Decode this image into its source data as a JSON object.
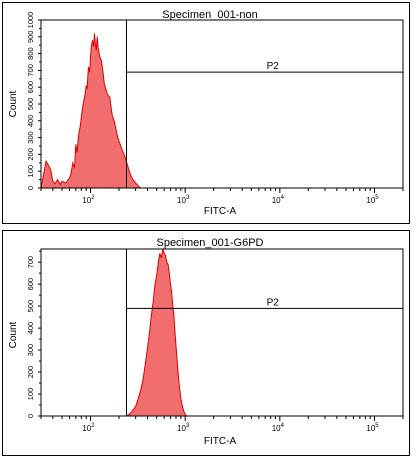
{
  "colors": {
    "fill": "#f26d6d",
    "stroke": "#dd0000",
    "axis": "#000000",
    "background": "#ffffff"
  },
  "panels": [
    {
      "title": "Specimen_001-non",
      "xlabel": "FITC-A",
      "ylabel": "Count",
      "gate_label": "P2",
      "chart_data": {
        "type": "area",
        "title": "Specimen_001-non",
        "xlabel": "FITC-A",
        "ylabel": "Count",
        "x_scale": "log",
        "xlim": [
          30,
          200000
        ],
        "ylim": [
          0,
          1000
        ],
        "x_ticks": [
          {
            "base": "10",
            "exp": "2",
            "value": 100
          },
          {
            "base": "10",
            "exp": "3",
            "value": 1000
          },
          {
            "base": "10",
            "exp": "4",
            "value": 10000
          },
          {
            "base": "10",
            "exp": "5",
            "value": 100000
          }
        ],
        "y_ticks": [
          0,
          100,
          200,
          300,
          400,
          500,
          600,
          700,
          800,
          900,
          1000
        ],
        "gate": {
          "name": "P2",
          "x_min": 240,
          "x_max": 200000,
          "level": 690
        },
        "x": [
          30,
          34,
          38,
          40,
          42,
          45,
          48,
          50,
          55,
          60,
          62,
          65,
          68,
          70,
          72,
          75,
          78,
          80,
          82,
          85,
          88,
          90,
          92,
          95,
          98,
          100,
          102,
          105,
          108,
          110,
          112,
          115,
          118,
          120,
          125,
          130,
          135,
          140,
          150,
          160,
          170,
          180,
          190,
          200,
          215,
          230,
          245,
          260,
          280,
          300,
          320,
          340
        ],
        "y": [
          0,
          160,
          110,
          40,
          25,
          50,
          20,
          40,
          30,
          60,
          80,
          150,
          120,
          260,
          210,
          320,
          370,
          420,
          470,
          520,
          560,
          610,
          590,
          720,
          690,
          780,
          840,
          880,
          840,
          920,
          870,
          820,
          900,
          840,
          780,
          760,
          700,
          620,
          560,
          540,
          430,
          390,
          320,
          280,
          230,
          190,
          140,
          90,
          50,
          30,
          12,
          0
        ]
      }
    },
    {
      "title": "Specimen_001-G6PD",
      "xlabel": "FITC-A",
      "ylabel": "Count",
      "gate_label": "P2",
      "chart_data": {
        "type": "area",
        "title": "Specimen_001-G6PD",
        "xlabel": "FITC-A",
        "ylabel": "Count",
        "x_scale": "log",
        "xlim": [
          30,
          200000
        ],
        "ylim": [
          0,
          760
        ],
        "x_ticks": [
          {
            "base": "10",
            "exp": "2",
            "value": 100
          },
          {
            "base": "10",
            "exp": "3",
            "value": 1000
          },
          {
            "base": "10",
            "exp": "4",
            "value": 10000
          },
          {
            "base": "10",
            "exp": "5",
            "value": 100000
          }
        ],
        "y_ticks": [
          0,
          100,
          200,
          300,
          400,
          500,
          600,
          700
        ],
        "gate": {
          "name": "P2",
          "x_min": 240,
          "x_max": 200000,
          "level": 490
        },
        "x": [
          240,
          260,
          280,
          300,
          320,
          340,
          360,
          380,
          400,
          420,
          440,
          460,
          480,
          500,
          520,
          540,
          560,
          580,
          600,
          620,
          640,
          660,
          680,
          700,
          720,
          740,
          760,
          780,
          800,
          830,
          860,
          900,
          940,
          980,
          1030
        ],
        "y": [
          0,
          10,
          25,
          45,
          80,
          120,
          170,
          240,
          310,
          380,
          460,
          520,
          600,
          640,
          700,
          740,
          720,
          760,
          740,
          730,
          700,
          690,
          650,
          600,
          560,
          500,
          460,
          380,
          320,
          230,
          150,
          80,
          40,
          15,
          0
        ]
      }
    }
  ]
}
